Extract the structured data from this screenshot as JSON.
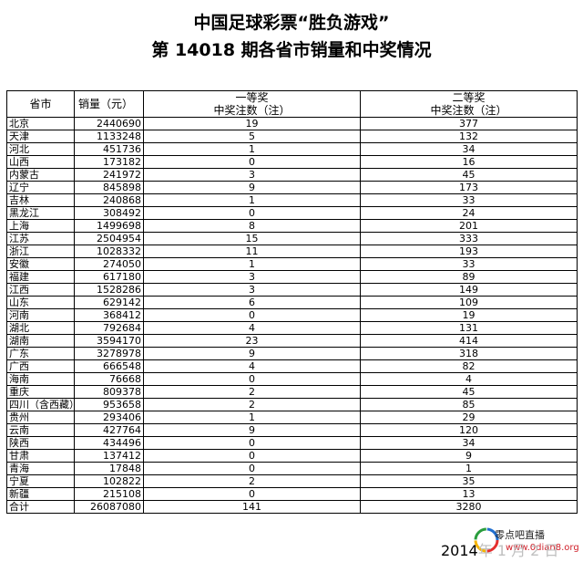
{
  "title": "中国足球彩票“胜负游戏”",
  "subtitle": "第 14018 期各省市销量和中奖情况",
  "headers": {
    "province": "省市",
    "sales": "销量（元）",
    "first_prize": "一等奖",
    "second_prize": "二等奖",
    "winners": "中奖注数（注）"
  },
  "rows": [
    {
      "province": "北京",
      "sales": "2440690",
      "first": "19",
      "second": "377"
    },
    {
      "province": "天津",
      "sales": "1133248",
      "first": "5",
      "second": "132"
    },
    {
      "province": "河北",
      "sales": "451736",
      "first": "1",
      "second": "34"
    },
    {
      "province": "山西",
      "sales": "173182",
      "first": "0",
      "second": "16"
    },
    {
      "province": "内蒙古",
      "sales": "241972",
      "first": "3",
      "second": "45"
    },
    {
      "province": "辽宁",
      "sales": "845898",
      "first": "9",
      "second": "173"
    },
    {
      "province": "吉林",
      "sales": "240868",
      "first": "1",
      "second": "33"
    },
    {
      "province": "黑龙江",
      "sales": "308492",
      "first": "0",
      "second": "24"
    },
    {
      "province": "上海",
      "sales": "1499698",
      "first": "8",
      "second": "201"
    },
    {
      "province": "江苏",
      "sales": "2504954",
      "first": "15",
      "second": "333"
    },
    {
      "province": "浙江",
      "sales": "1028332",
      "first": "11",
      "second": "193"
    },
    {
      "province": "安徽",
      "sales": "274050",
      "first": "1",
      "second": "33"
    },
    {
      "province": "福建",
      "sales": "617180",
      "first": "3",
      "second": "89"
    },
    {
      "province": "江西",
      "sales": "1528286",
      "first": "3",
      "second": "149"
    },
    {
      "province": "山东",
      "sales": "629142",
      "first": "6",
      "second": "109"
    },
    {
      "province": "河南",
      "sales": "368412",
      "first": "0",
      "second": "19"
    },
    {
      "province": "湖北",
      "sales": "792684",
      "first": "4",
      "second": "131"
    },
    {
      "province": "湖南",
      "sales": "3594170",
      "first": "23",
      "second": "414"
    },
    {
      "province": "广东",
      "sales": "3278978",
      "first": "9",
      "second": "318"
    },
    {
      "province": "广西",
      "sales": "666548",
      "first": "4",
      "second": "82"
    },
    {
      "province": "海南",
      "sales": "76668",
      "first": "0",
      "second": "4"
    },
    {
      "province": "重庆",
      "sales": "809378",
      "first": "2",
      "second": "45"
    },
    {
      "province": "四川（含西藏）",
      "sales": "953658",
      "first": "2",
      "second": "85"
    },
    {
      "province": "贵州",
      "sales": "293406",
      "first": "1",
      "second": "29"
    },
    {
      "province": "云南",
      "sales": "427764",
      "first": "9",
      "second": "120"
    },
    {
      "province": "陕西",
      "sales": "434496",
      "first": "0",
      "second": "34"
    },
    {
      "province": "甘肃",
      "sales": "137412",
      "first": "0",
      "second": "9"
    },
    {
      "province": "青海",
      "sales": "17848",
      "first": "0",
      "second": "1"
    },
    {
      "province": "宁夏",
      "sales": "102822",
      "first": "2",
      "second": "35"
    },
    {
      "province": "新疆",
      "sales": "215108",
      "first": "0",
      "second": "13"
    },
    {
      "province": "合计",
      "sales": "26087080",
      "first": "141",
      "second": "3280"
    }
  ],
  "footer_date": "2014",
  "footer_date_faded": "年 1 月 2 日",
  "watermark": {
    "text": "零点吧直播",
    "url": "www.0dian8.org",
    "logo_colors": [
      "#e52e2e",
      "#f7b500",
      "#2a9d3d",
      "#1f6fd0"
    ]
  }
}
